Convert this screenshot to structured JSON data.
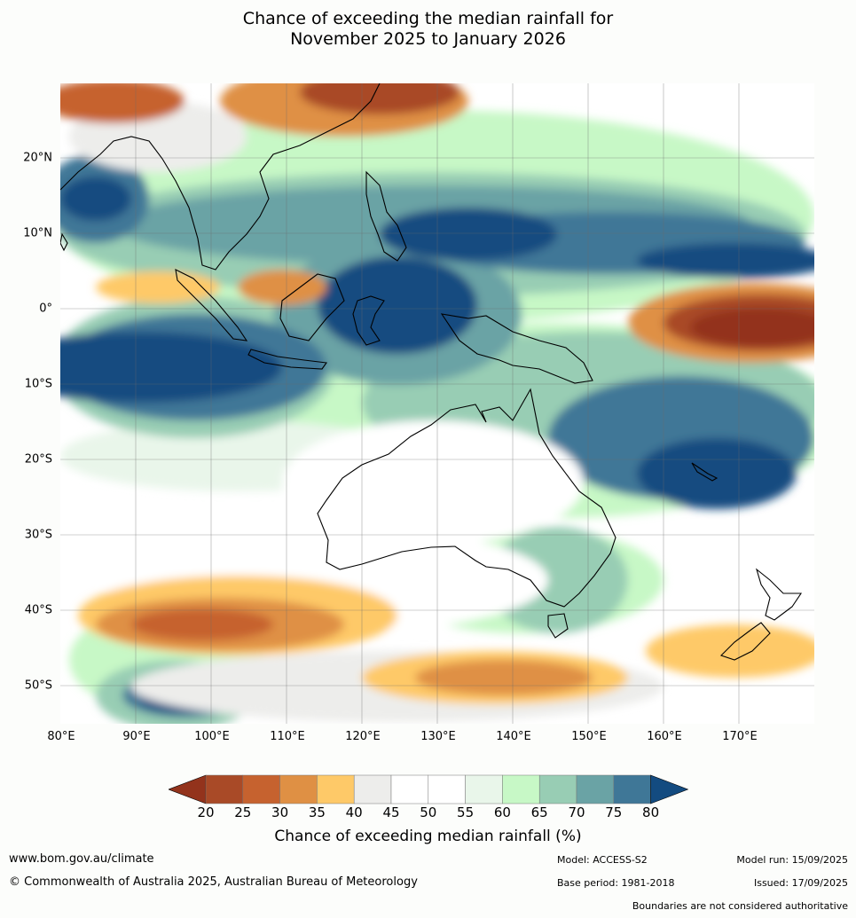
{
  "title": {
    "line1": "Chance of exceeding the median rainfall for",
    "line2": "November 2025 to January 2026"
  },
  "map": {
    "lat_labels": [
      "20°N",
      "10°N",
      "0°",
      "10°S",
      "20°S",
      "30°S",
      "40°S",
      "50°S"
    ],
    "lon_labels": [
      "80°E",
      "90°E",
      "100°E",
      "110°E",
      "120°E",
      "130°E",
      "140°E",
      "150°E",
      "160°E",
      "170°E"
    ],
    "colors": {
      "ocean_base": "#ffffff",
      "coast": "#000000",
      "border": "#8a8a8a",
      "grid": "#6b6b6b"
    }
  },
  "legend": {
    "ticks": [
      "20",
      "25",
      "30",
      "35",
      "40",
      "45",
      "50",
      "55",
      "60",
      "65",
      "70",
      "75",
      "80"
    ],
    "label": "Chance of exceeding median rainfall (%)",
    "colors": [
      "#93331c",
      "#a94a27",
      "#c6622f",
      "#df9044",
      "#fec968",
      "#ededeb",
      "#ffffff",
      "#ffffff",
      "#e9f6ea",
      "#c7f8c6",
      "#98cdb4",
      "#6aa3a5",
      "#3f7797",
      "#134b80"
    ]
  },
  "footer": {
    "website": "www.bom.gov.au/climate",
    "copyright": "© Commonwealth of Australia 2025, Australian Bureau of Meteorology",
    "model": "Model: ACCESS-S2",
    "base_period": "Base period: 1981-2018",
    "model_run": "Model run: 15/09/2025",
    "issued": "Issued: 17/09/2025",
    "disclaimer": "Boundaries are not considered authoritative"
  }
}
